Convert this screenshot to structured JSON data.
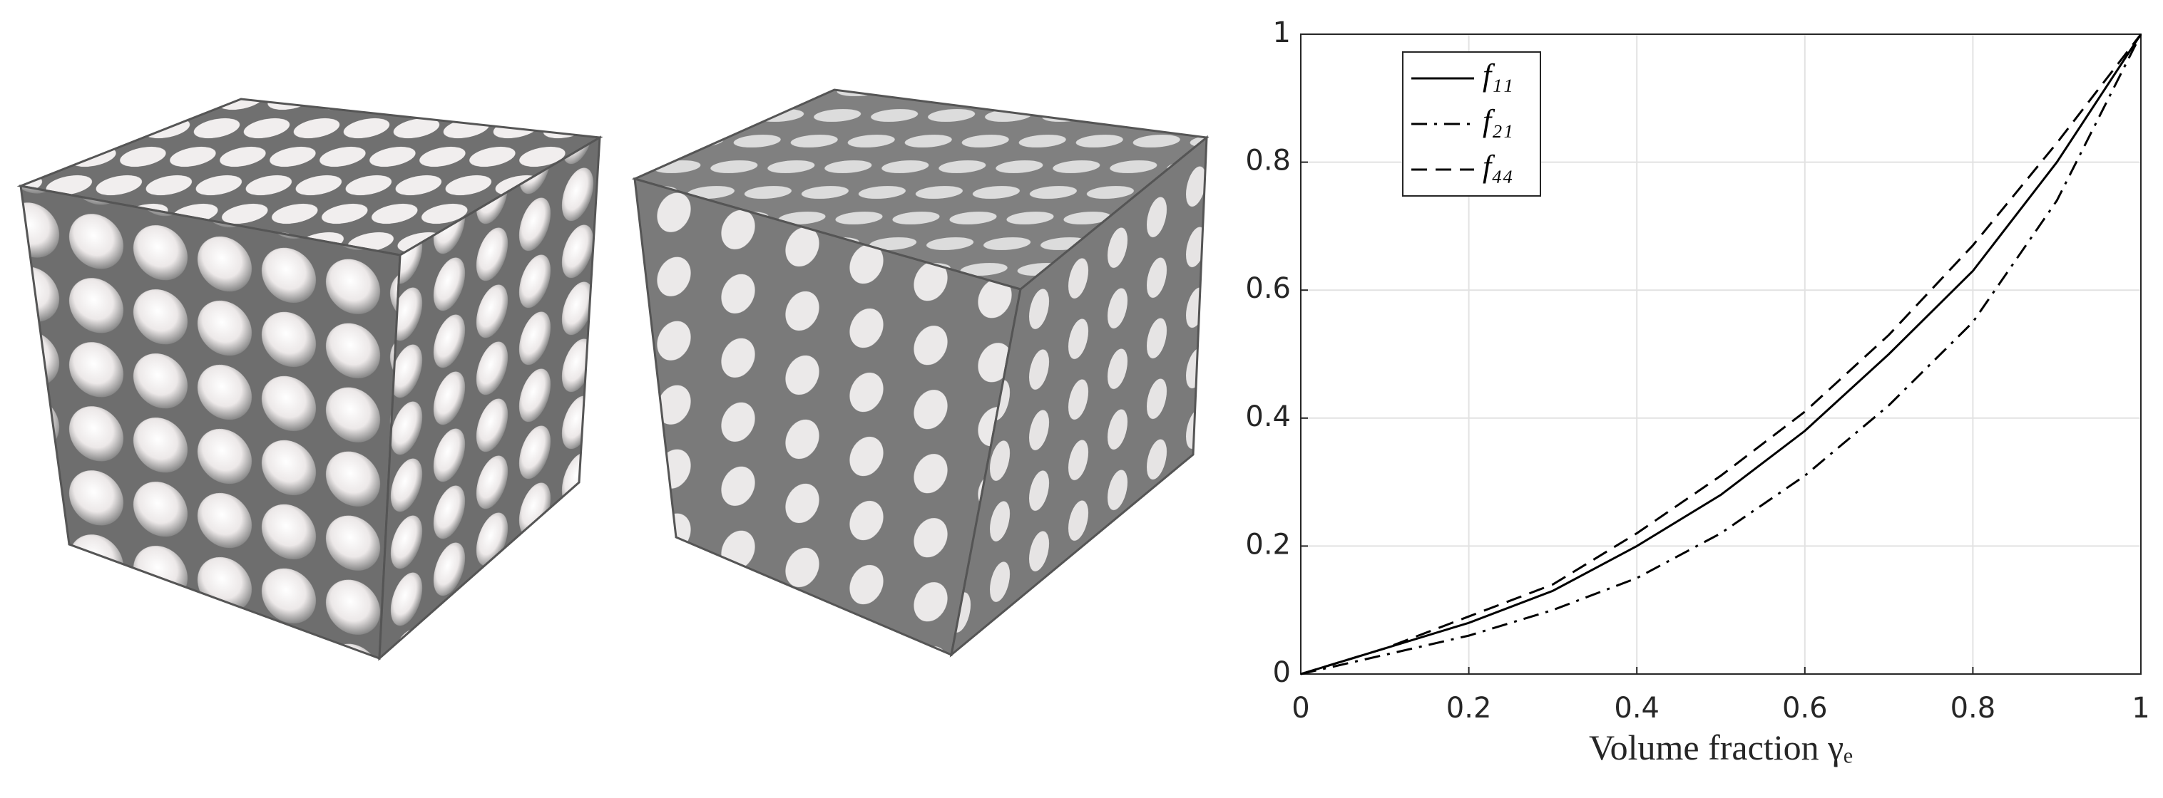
{
  "chart_data": {
    "type": "line",
    "x_label": "Volume fraction γₑ",
    "x": [
      0,
      0.1,
      0.2,
      0.3,
      0.4,
      0.5,
      0.6,
      0.7,
      0.8,
      0.9,
      1
    ],
    "series": [
      {
        "name": "f₁₁",
        "color": "#000000",
        "line_style": "solid",
        "values": [
          0,
          0.04,
          0.08,
          0.13,
          0.2,
          0.28,
          0.38,
          0.5,
          0.63,
          0.8,
          1
        ]
      },
      {
        "name": "f₂₁",
        "color": "#000000",
        "line_style": "dashdot",
        "values": [
          0,
          0.03,
          0.06,
          0.1,
          0.15,
          0.22,
          0.31,
          0.42,
          0.55,
          0.74,
          1
        ]
      },
      {
        "name": "f₄₄",
        "color": "#000000",
        "line_style": "dashed",
        "values": [
          0,
          0.04,
          0.09,
          0.14,
          0.22,
          0.31,
          0.41,
          0.53,
          0.67,
          0.83,
          1
        ]
      }
    ],
    "xlim": [
      0,
      1
    ],
    "ylim": [
      0,
      1
    ],
    "xticks": [
      0,
      0.2,
      0.4,
      0.6,
      0.8,
      1
    ],
    "yticks": [
      0,
      0.2,
      0.4,
      0.6,
      0.8,
      1
    ],
    "grid": true,
    "legend": "upper-left"
  }
}
